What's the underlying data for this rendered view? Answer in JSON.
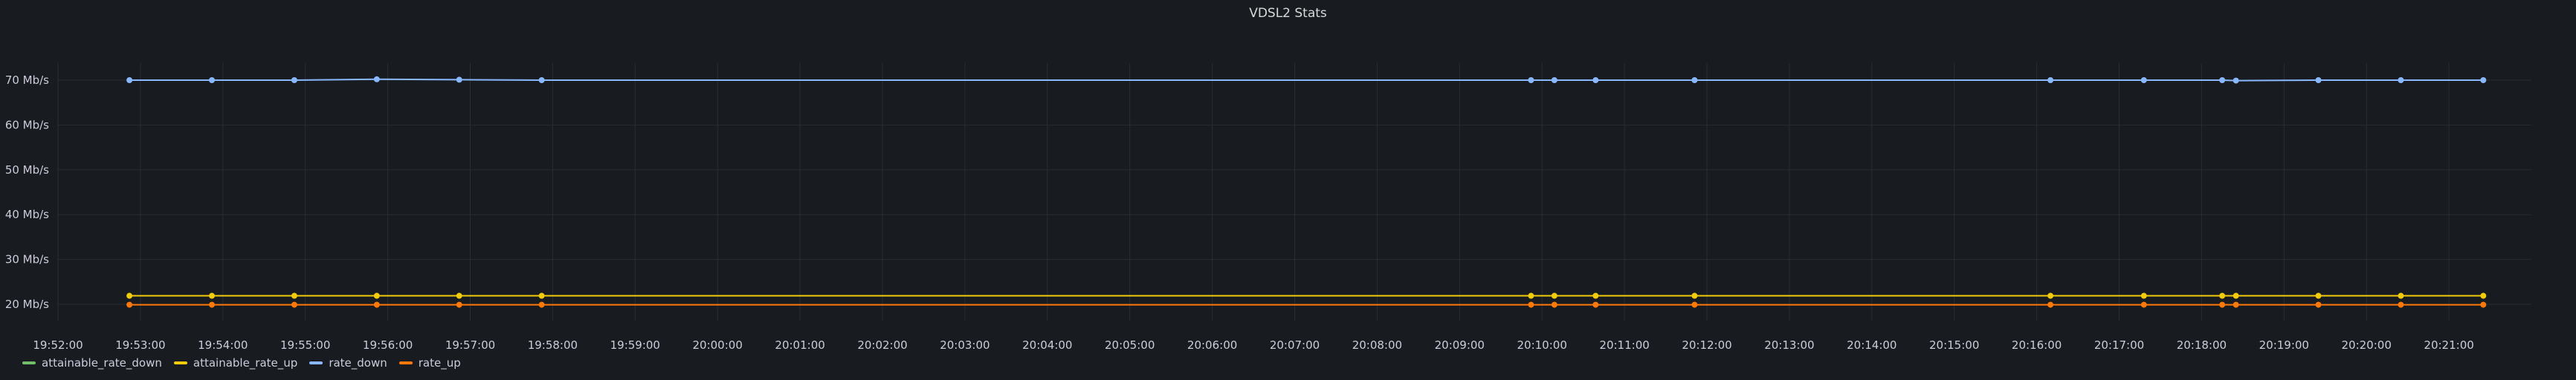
{
  "panel": {
    "title": "VDSL2 Stats"
  },
  "chart_data": {
    "type": "line",
    "title": "VDSL2 Stats",
    "y_unit": "Mb/s",
    "y_ticks": [
      "20 Mb/s",
      "30 Mb/s",
      "40 Mb/s",
      "50 Mb/s",
      "60 Mb/s",
      "70 Mb/s"
    ],
    "x_ticks": [
      "19:52:00",
      "19:53:00",
      "19:54:00",
      "19:55:00",
      "19:56:00",
      "19:57:00",
      "19:58:00",
      "19:59:00",
      "20:00:00",
      "20:01:00",
      "20:02:00",
      "20:03:00",
      "20:04:00",
      "20:05:00",
      "20:06:00",
      "20:07:00",
      "20:08:00",
      "20:09:00",
      "20:10:00",
      "20:11:00",
      "20:12:00",
      "20:13:00",
      "20:14:00",
      "20:15:00",
      "20:16:00",
      "20:17:00",
      "20:18:00",
      "20:19:00",
      "20:20:00",
      "20:21:00"
    ],
    "x_range": [
      "19:52:00",
      "20:22:00"
    ],
    "ylim": [
      20,
      70
    ],
    "grid": true,
    "legend_position": "bottom-left",
    "series": [
      {
        "name": "attainable_rate_down",
        "color": "#73bf69",
        "points": []
      },
      {
        "name": "attainable_rate_up",
        "color": "#f2cc0c",
        "points": [
          [
            "19:52:52",
            21.9
          ],
          [
            "19:53:52",
            21.9
          ],
          [
            "19:54:52",
            21.9
          ],
          [
            "19:55:52",
            21.9
          ],
          [
            "19:56:52",
            21.9
          ],
          [
            "19:57:52",
            21.9
          ],
          [
            "20:09:52",
            21.9
          ],
          [
            "20:10:09",
            21.9
          ],
          [
            "20:10:39",
            21.9
          ],
          [
            "20:11:51",
            21.9
          ],
          [
            "20:16:10",
            21.9
          ],
          [
            "20:17:18",
            21.9
          ],
          [
            "20:18:15",
            21.9
          ],
          [
            "20:18:25",
            21.9
          ],
          [
            "20:19:25",
            21.9
          ],
          [
            "20:20:25",
            21.9
          ],
          [
            "20:21:25",
            21.9
          ]
        ]
      },
      {
        "name": "rate_down",
        "color": "#8ab8ff",
        "points": [
          [
            "19:52:52",
            70.0
          ],
          [
            "19:53:52",
            70.0
          ],
          [
            "19:54:52",
            70.0
          ],
          [
            "19:55:52",
            70.2
          ],
          [
            "19:56:52",
            70.1
          ],
          [
            "19:57:52",
            70.0
          ],
          [
            "20:09:52",
            70.0
          ],
          [
            "20:10:09",
            70.0
          ],
          [
            "20:10:39",
            70.0
          ],
          [
            "20:11:51",
            70.0
          ],
          [
            "20:16:10",
            70.0
          ],
          [
            "20:17:18",
            70.0
          ],
          [
            "20:18:15",
            70.0
          ],
          [
            "20:18:25",
            69.9
          ],
          [
            "20:19:25",
            70.0
          ],
          [
            "20:20:25",
            70.0
          ],
          [
            "20:21:25",
            70.0
          ]
        ]
      },
      {
        "name": "rate_up",
        "color": "#ff780a",
        "points": [
          [
            "19:52:52",
            19.9
          ],
          [
            "19:53:52",
            19.9
          ],
          [
            "19:54:52",
            19.9
          ],
          [
            "19:55:52",
            19.9
          ],
          [
            "19:56:52",
            19.9
          ],
          [
            "19:57:52",
            19.9
          ],
          [
            "20:09:52",
            19.9
          ],
          [
            "20:10:09",
            19.9
          ],
          [
            "20:10:39",
            19.9
          ],
          [
            "20:11:51",
            19.9
          ],
          [
            "20:16:10",
            19.9
          ],
          [
            "20:17:18",
            19.9
          ],
          [
            "20:18:15",
            19.9
          ],
          [
            "20:18:25",
            19.9
          ],
          [
            "20:19:25",
            19.9
          ],
          [
            "20:20:25",
            19.9
          ],
          [
            "20:21:25",
            19.9
          ]
        ]
      }
    ]
  },
  "legend": [
    {
      "label": "attainable_rate_down",
      "color": "#73bf69"
    },
    {
      "label": "attainable_rate_up",
      "color": "#f2cc0c"
    },
    {
      "label": "rate_down",
      "color": "#8ab8ff"
    },
    {
      "label": "rate_up",
      "color": "#ff780a"
    }
  ]
}
